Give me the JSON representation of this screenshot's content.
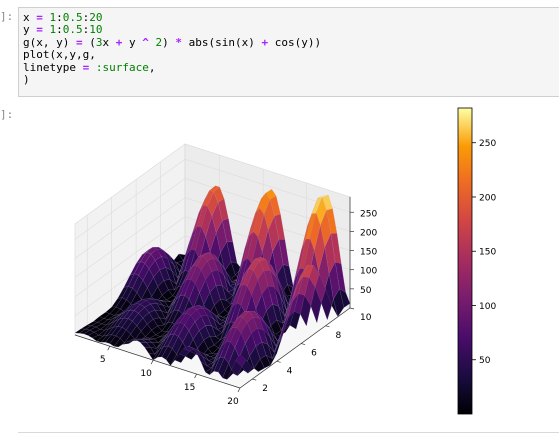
{
  "cell": {
    "input_prompt": "]:",
    "output_prompt": "]:",
    "code_lines": [
      [
        {
          "t": "x "
        },
        {
          "t": "=",
          "c": "op"
        },
        {
          "t": " "
        },
        {
          "t": "1",
          "c": "num"
        },
        {
          "t": ":"
        },
        {
          "t": "0.5",
          "c": "num"
        },
        {
          "t": ":"
        },
        {
          "t": "20",
          "c": "num"
        }
      ],
      [
        {
          "t": "y "
        },
        {
          "t": "=",
          "c": "op"
        },
        {
          "t": " "
        },
        {
          "t": "1",
          "c": "num"
        },
        {
          "t": ":"
        },
        {
          "t": "0.5",
          "c": "num"
        },
        {
          "t": ":"
        },
        {
          "t": "10",
          "c": "num"
        }
      ],
      [
        {
          "t": "g(x, y) "
        },
        {
          "t": "=",
          "c": "op"
        },
        {
          "t": " ("
        },
        {
          "t": "3",
          "c": "num"
        },
        {
          "t": "x "
        },
        {
          "t": "+",
          "c": "op"
        },
        {
          "t": " y "
        },
        {
          "t": "^",
          "c": "op"
        },
        {
          "t": " "
        },
        {
          "t": "2",
          "c": "num"
        },
        {
          "t": ") "
        },
        {
          "t": "*",
          "c": "op"
        },
        {
          "t": " abs(sin(x) "
        },
        {
          "t": "+",
          "c": "op"
        },
        {
          "t": " cos(y))"
        }
      ],
      [
        {
          "t": "plot(x,y,g,"
        }
      ],
      [
        {
          "t": "linetype "
        },
        {
          "t": "=",
          "c": "op"
        },
        {
          "t": " "
        },
        {
          "t": ":surface",
          "c": "sym"
        },
        {
          "t": ","
        }
      ],
      [
        {
          "t": ")"
        }
      ]
    ]
  },
  "chart_data": {
    "type": "surface",
    "function": "g(x, y) = (3x + y ^ 2) * abs(sin(x) + cos(y))",
    "x_range": [
      1,
      20
    ],
    "y_range": [
      1,
      10
    ],
    "step": 0.5,
    "colormap": "inferno",
    "x_ticks": [
      5,
      10,
      15,
      20
    ],
    "y_ticks": [
      2,
      4,
      6,
      8,
      10
    ],
    "z_ticks": [
      50,
      100,
      150,
      200,
      250
    ],
    "colorbar_ticks": [
      50,
      100,
      150,
      200,
      250
    ],
    "colorbar_range": [
      0,
      282
    ],
    "grid": true,
    "legend": "none"
  },
  "colors": {
    "code_bg": "#f5f5f5",
    "keyword_op": "#aa22ff",
    "number": "#008000"
  }
}
